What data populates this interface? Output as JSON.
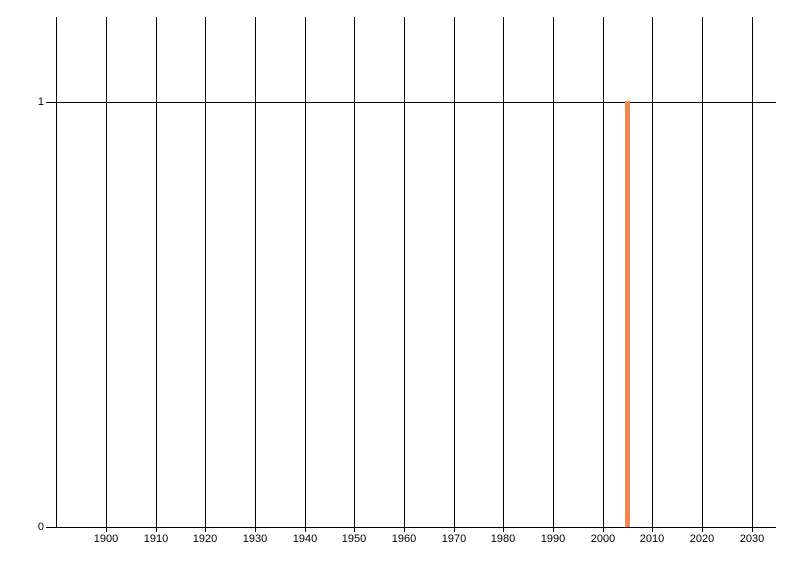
{
  "chart_data": {
    "type": "bar",
    "title": "",
    "xlabel": "",
    "ylabel": "",
    "x": [
      2005
    ],
    "values": [
      1
    ],
    "bar_color": "#F6874F",
    "xlim": [
      1888,
      2035
    ],
    "ylim": [
      0,
      1.2
    ],
    "grid": "vertical",
    "legend": "none",
    "x_gridline_years": [
      1890,
      1900,
      1910,
      1920,
      1930,
      1940,
      1950,
      1960,
      1970,
      1980,
      1990,
      2000,
      2010,
      2020,
      2030
    ],
    "x_tick_years": [
      1900,
      1910,
      1920,
      1930,
      1940,
      1950,
      1960,
      1970,
      1980,
      1990,
      2000,
      2010,
      2020,
      2030
    ],
    "x_tick_labels": [
      "1900",
      "1910",
      "1920",
      "1930",
      "1940",
      "1950",
      "1960",
      "1970",
      "1980",
      "1990",
      "2000",
      "2010",
      "2020",
      "2030"
    ],
    "y_tick_values": [
      0,
      1
    ],
    "y_tick_labels": [
      "0",
      "1"
    ],
    "colors": {
      "grid": "#000000",
      "axis": "#000000",
      "text": "#000000",
      "background": "#FFFFFF"
    }
  }
}
